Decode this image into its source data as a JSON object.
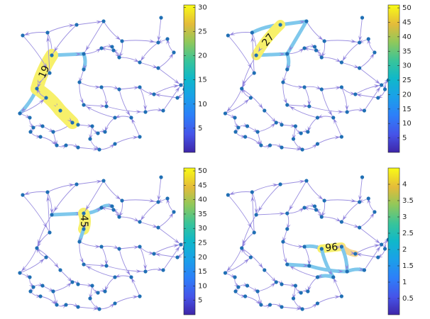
{
  "palette": {
    "node": "#1f6fb4",
    "edge": "#9a8ee0",
    "arrow": "#8f82dd",
    "edge_light": "#7fc8ec",
    "edge_hot": "#f7f06a",
    "edge_orange": "#f6d690"
  },
  "chart_data": [
    {
      "type": "network",
      "panel": "top-left",
      "colorbar": {
        "range": [
          0,
          30.5
        ],
        "ticks": [
          "5",
          "10",
          "15",
          "20",
          "25",
          "30"
        ]
      },
      "edge_label": "19"
    },
    {
      "type": "network",
      "panel": "top-right",
      "colorbar": {
        "range": [
          0,
          51
        ],
        "ticks": [
          "5",
          "10",
          "15",
          "20",
          "25",
          "30",
          "35",
          "40",
          "45",
          "50"
        ]
      },
      "edge_label": "27"
    },
    {
      "type": "network",
      "panel": "bottom-left",
      "colorbar": {
        "range": [
          0,
          51
        ],
        "ticks": [
          "5",
          "10",
          "15",
          "20",
          "25",
          "30",
          "35",
          "40",
          "45",
          "50"
        ]
      },
      "edge_label": "45"
    },
    {
      "type": "network",
      "panel": "bottom-right",
      "colorbar": {
        "range": [
          0,
          4.5
        ],
        "ticks": [
          "0.5",
          "1",
          "1.5",
          "2",
          "2.5",
          "3",
          "3.5",
          "4"
        ]
      },
      "edge_label": "96"
    }
  ]
}
